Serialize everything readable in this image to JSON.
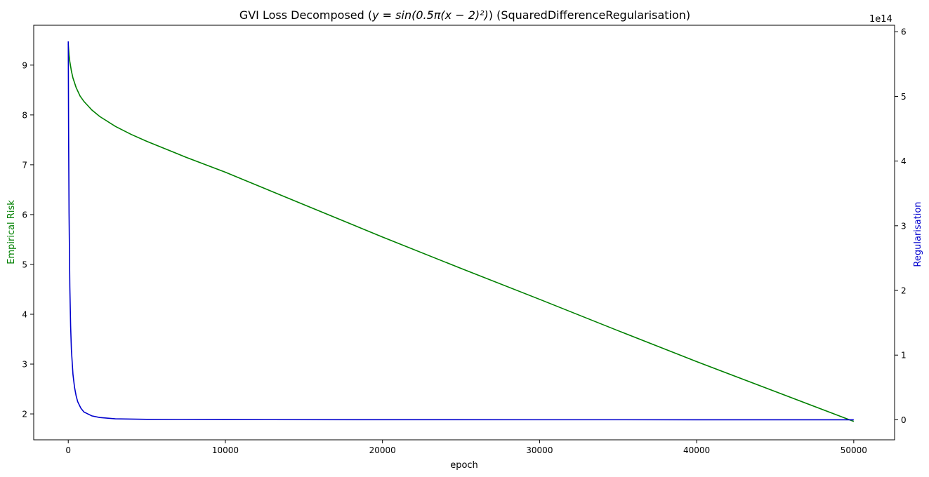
{
  "chart_data": {
    "type": "line",
    "title_prefix": "GVI Loss Decomposed (",
    "title_math": "y = sin(0.5π(x − 2)²)",
    "title_suffix": ") (SquaredDifferenceRegularisation)",
    "xlabel": "epoch",
    "ylabel_left": "Empirical Risk",
    "ylabel_right": "Regularisation",
    "right_axis_offset_label": "1e14",
    "xlim": [
      -2200,
      52600
    ],
    "ylim_left": [
      1.48,
      9.8
    ],
    "ylim_right": [
      -0.31,
      6.1
    ],
    "x_ticks": [
      0,
      10000,
      20000,
      30000,
      40000,
      50000
    ],
    "y_ticks_left": [
      2,
      3,
      4,
      5,
      6,
      7,
      8,
      9
    ],
    "y_ticks_right": [
      0,
      1,
      2,
      3,
      4,
      5,
      6
    ],
    "colors": {
      "empirical_risk": "#008000",
      "regularisation": "#0000cd",
      "axis": "#000000"
    },
    "series": [
      {
        "axis": "left",
        "x": [
          0,
          50,
          100,
          200,
          300,
          500,
          750,
          1000,
          1500,
          2000,
          3000,
          4000,
          5000,
          7500,
          10000,
          15000,
          20000,
          25000,
          30000,
          35000,
          40000,
          45000,
          50000
        ],
        "values": [
          9.42,
          9.2,
          9.07,
          8.88,
          8.74,
          8.55,
          8.38,
          8.27,
          8.1,
          7.97,
          7.77,
          7.61,
          7.47,
          7.15,
          6.85,
          6.2,
          5.55,
          4.92,
          4.3,
          3.67,
          3.05,
          2.45,
          1.85
        ]
      },
      {
        "axis": "right",
        "x": [
          0,
          20,
          50,
          100,
          150,
          200,
          300,
          400,
          500,
          600,
          800,
          1000,
          1500,
          2000,
          3000,
          5000,
          10000,
          20000,
          30000,
          40000,
          50000
        ],
        "values": [
          5.85,
          4.5,
          3.2,
          2.05,
          1.45,
          1.08,
          0.7,
          0.5,
          0.37,
          0.28,
          0.18,
          0.12,
          0.06,
          0.035,
          0.015,
          0.006,
          0.002,
          0.001,
          0.0005,
          0.0002,
          0.0
        ]
      }
    ]
  }
}
